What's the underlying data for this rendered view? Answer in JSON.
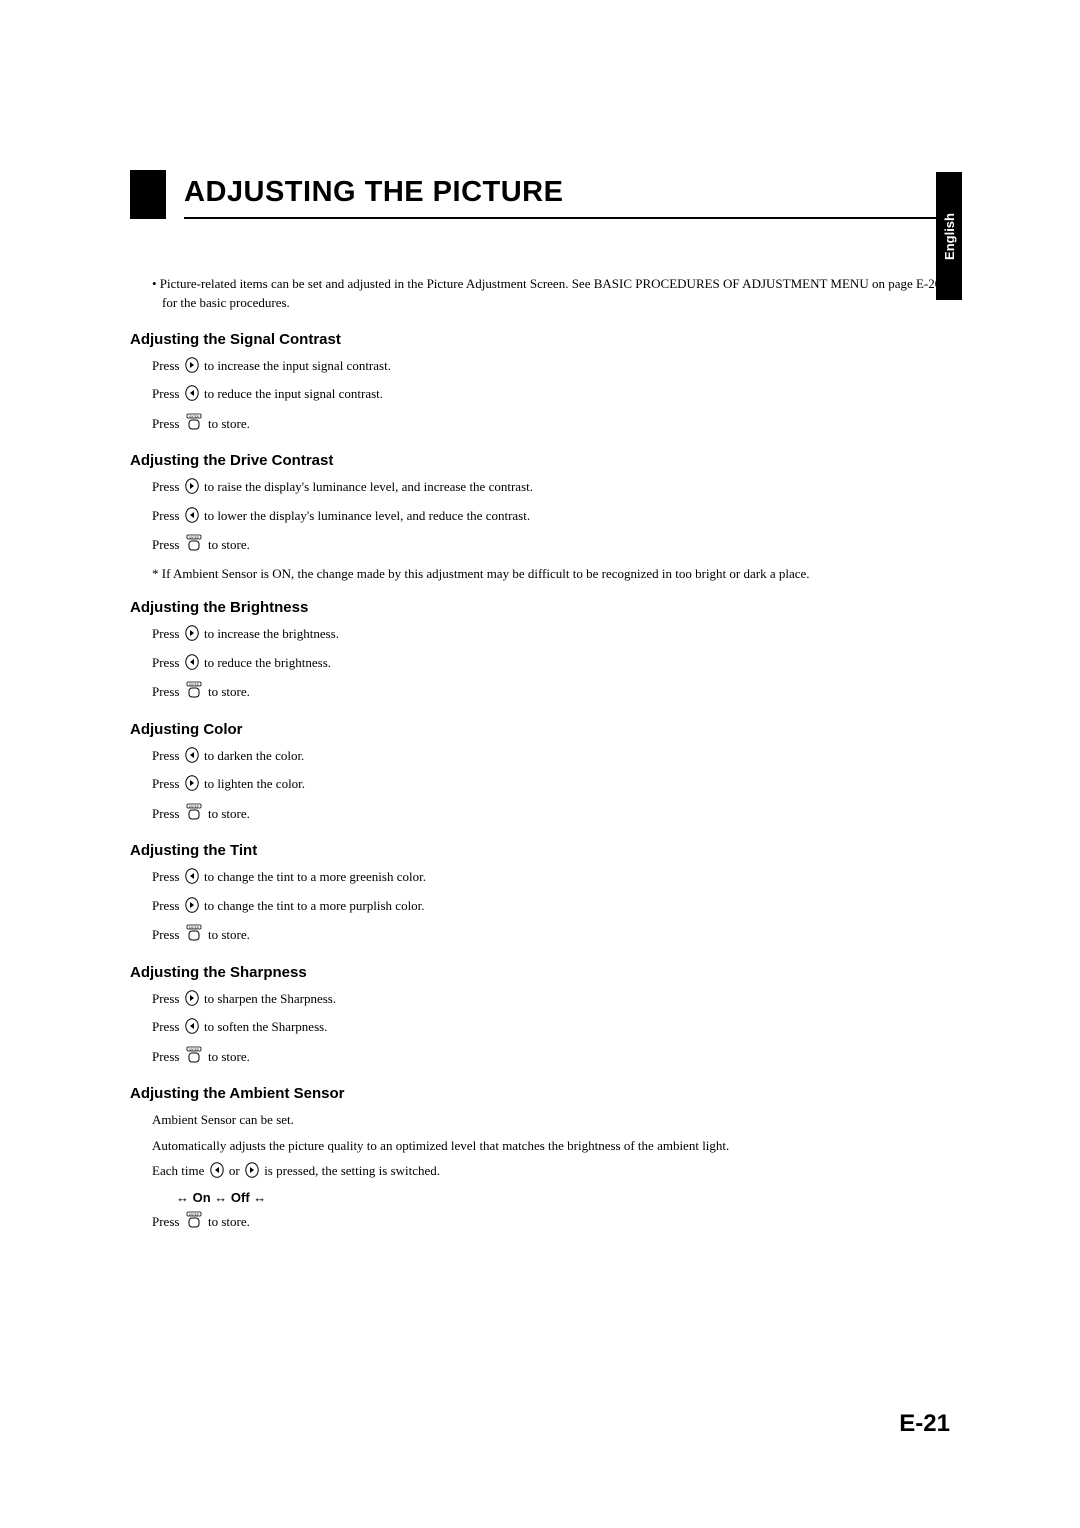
{
  "header": {
    "title": "ADJUSTING THE PICTURE",
    "lang_tab": "English"
  },
  "intro": "• Picture-related items can be set and adjusted in the Picture Adjustment Screen. See BASIC PROCEDURES OF ADJUSTMENT MENU on page E-20 for the basic procedures.",
  "sections": [
    {
      "heading": "Adjusting the Signal Contrast",
      "lines": [
        {
          "pre": "Press ",
          "icon": "right",
          "post": " to increase the input signal contrast."
        },
        {
          "pre": "Press ",
          "icon": "left",
          "post": " to reduce the input signal contrast."
        },
        {
          "pre": "Press ",
          "icon": "enter",
          "post": " to store."
        }
      ]
    },
    {
      "heading": "Adjusting the Drive Contrast",
      "lines": [
        {
          "pre": "Press ",
          "icon": "right",
          "post": " to raise the display's luminance level, and increase the contrast."
        },
        {
          "pre": "Press ",
          "icon": "left",
          "post": " to lower the display's luminance level, and reduce the contrast."
        },
        {
          "pre": "Press ",
          "icon": "enter",
          "post": " to store."
        }
      ],
      "note": "*  If Ambient Sensor is ON, the change made by this adjustment may be difficult to be recognized in too bright or dark a place."
    },
    {
      "heading": "Adjusting the Brightness",
      "lines": [
        {
          "pre": "Press ",
          "icon": "right",
          "post": " to increase the brightness."
        },
        {
          "pre": "Press ",
          "icon": "left",
          "post": " to reduce the brightness."
        },
        {
          "pre": "Press ",
          "icon": "enter",
          "post": " to store."
        }
      ]
    },
    {
      "heading": "Adjusting Color",
      "lines": [
        {
          "pre": "Press ",
          "icon": "left",
          "post": " to darken the color."
        },
        {
          "pre": "Press ",
          "icon": "right",
          "post": " to lighten the color."
        },
        {
          "pre": "Press ",
          "icon": "enter",
          "post": " to store."
        }
      ]
    },
    {
      "heading": "Adjusting the Tint",
      "lines": [
        {
          "pre": "Press ",
          "icon": "left",
          "post": " to change the tint to a more greenish color."
        },
        {
          "pre": "Press ",
          "icon": "right",
          "post": " to change the tint to a more purplish color."
        },
        {
          "pre": "Press ",
          "icon": "enter",
          "post": " to store."
        }
      ]
    },
    {
      "heading": "Adjusting the Sharpness",
      "lines": [
        {
          "pre": "Press ",
          "icon": "right",
          "post": " to sharpen the Sharpness."
        },
        {
          "pre": "Press ",
          "icon": "left",
          "post": " to soften the Sharpness."
        },
        {
          "pre": "Press ",
          "icon": "enter",
          "post": " to store."
        }
      ]
    },
    {
      "heading": "Adjusting the Ambient Sensor",
      "plain_lines": [
        "Ambient Sensor can be set.",
        "Automatically adjusts the picture quality to an optimized level that matches the brightness of the ambient light."
      ],
      "switch_line": {
        "pre": "Each time ",
        "icon1": "left",
        "mid": " or ",
        "icon2": "right",
        "post": " is pressed, the setting is switched."
      },
      "toggle": "↔ On ↔ Off ↔",
      "store_line": {
        "pre": "Press ",
        "icon": "enter",
        "post": " to store."
      }
    }
  ],
  "page_number": "E-21",
  "icons": {
    "left_title": "left-arrow-button",
    "right_title": "right-arrow-button",
    "enter_title": "enter-button"
  }
}
